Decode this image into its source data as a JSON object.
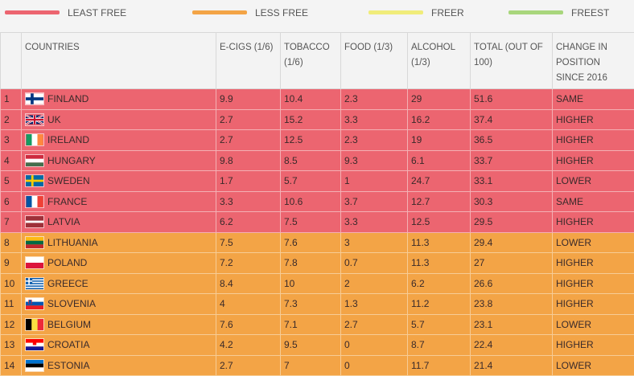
{
  "legend": [
    {
      "label": "LEAST FREE",
      "color": "#ec6570"
    },
    {
      "label": "LESS FREE",
      "color": "#f3a446"
    },
    {
      "label": "FREER",
      "color": "#f0ec7a"
    },
    {
      "label": "FREEST",
      "color": "#a8d67c"
    }
  ],
  "table": {
    "headers": [
      "",
      "COUNTRIES",
      "E-CIGS (1/6)",
      "TOBACCO (1/6)",
      "FOOD (1/3)",
      "ALCOHOL (1/3)",
      "TOTAL (OUT OF 100)",
      "CHANGE IN POSITION SINCE 2016"
    ],
    "rows": [
      {
        "rank": "1",
        "country": "FINLAND",
        "flag": "finland",
        "ecigs": "9.9",
        "tobacco": "10.4",
        "food": "2.3",
        "alcohol": "29",
        "total": "51.6",
        "change": "SAME",
        "band": "least"
      },
      {
        "rank": "2",
        "country": "UK",
        "flag": "uk",
        "ecigs": "2.7",
        "tobacco": "15.2",
        "food": "3.3",
        "alcohol": "16.2",
        "total": "37.4",
        "change": "HIGHER",
        "band": "least"
      },
      {
        "rank": "3",
        "country": "IRELAND",
        "flag": "ireland",
        "ecigs": "2.7",
        "tobacco": "12.5",
        "food": "2.3",
        "alcohol": "19",
        "total": "36.5",
        "change": "HIGHER",
        "band": "least"
      },
      {
        "rank": "4",
        "country": "HUNGARY",
        "flag": "hungary",
        "ecigs": "9.8",
        "tobacco": "8.5",
        "food": "9.3",
        "alcohol": "6.1",
        "total": "33.7",
        "change": "HIGHER",
        "band": "least"
      },
      {
        "rank": "5",
        "country": "SWEDEN",
        "flag": "sweden",
        "ecigs": "1.7",
        "tobacco": "5.7",
        "food": "1",
        "alcohol": "24.7",
        "total": "33.1",
        "change": "LOWER",
        "band": "least"
      },
      {
        "rank": "6",
        "country": "FRANCE",
        "flag": "france",
        "ecigs": "3.3",
        "tobacco": "10.6",
        "food": "3.7",
        "alcohol": "12.7",
        "total": "30.3",
        "change": "SAME",
        "band": "least"
      },
      {
        "rank": "7",
        "country": "LATVIA",
        "flag": "latvia",
        "ecigs": "6.2",
        "tobacco": "7.5",
        "food": "3.3",
        "alcohol": "12.5",
        "total": "29.5",
        "change": "HIGHER",
        "band": "least"
      },
      {
        "rank": "8",
        "country": "LITHUANIA",
        "flag": "lithuania",
        "ecigs": "7.5",
        "tobacco": "7.6",
        "food": "3",
        "alcohol": "11.3",
        "total": "29.4",
        "change": "LOWER",
        "band": "less"
      },
      {
        "rank": "9",
        "country": "POLAND",
        "flag": "poland",
        "ecigs": "7.2",
        "tobacco": "7.8",
        "food": "0.7",
        "alcohol": "11.3",
        "total": "27",
        "change": "HIGHER",
        "band": "less"
      },
      {
        "rank": "10",
        "country": "GREECE",
        "flag": "greece",
        "ecigs": "8.4",
        "tobacco": "10",
        "food": "2",
        "alcohol": "6.2",
        "total": "26.6",
        "change": "HIGHER",
        "band": "less"
      },
      {
        "rank": "11",
        "country": "SLOVENIA",
        "flag": "slovenia",
        "ecigs": "4",
        "tobacco": "7.3",
        "food": "1.3",
        "alcohol": "11.2",
        "total": "23.8",
        "change": "HIGHER",
        "band": "less"
      },
      {
        "rank": "12",
        "country": "BELGIUM",
        "flag": "belgium",
        "ecigs": "7.6",
        "tobacco": "7.1",
        "food": "2.7",
        "alcohol": "5.7",
        "total": "23.1",
        "change": "LOWER",
        "band": "less"
      },
      {
        "rank": "13",
        "country": "CROATIA",
        "flag": "croatia",
        "ecigs": "4.2",
        "tobacco": "9.5",
        "food": "0",
        "alcohol": "8.7",
        "total": "22.4",
        "change": "HIGHER",
        "band": "less"
      },
      {
        "rank": "14",
        "country": "ESTONIA",
        "flag": "estonia",
        "ecigs": "2.7",
        "tobacco": "7",
        "food": "0",
        "alcohol": "11.7",
        "total": "21.4",
        "change": "LOWER",
        "band": "less"
      }
    ]
  }
}
